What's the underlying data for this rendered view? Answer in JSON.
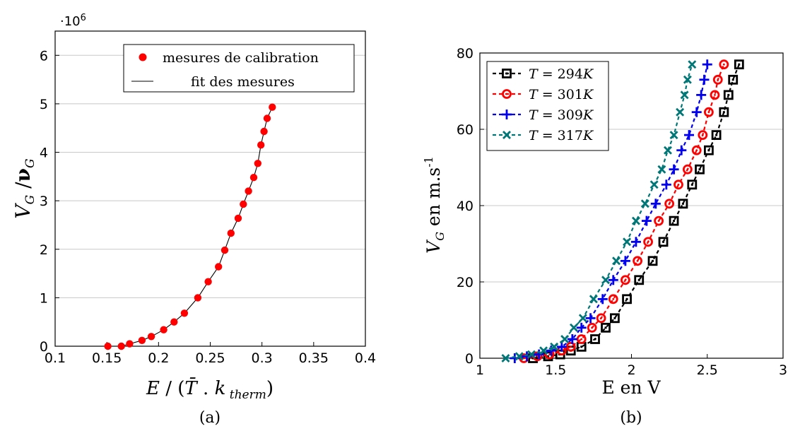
{
  "chart_data": [
    {
      "type": "scatter",
      "caption": "(a)",
      "multiplier": "·10",
      "multiplier_exp": "6",
      "xlim": [
        0.1,
        0.4
      ],
      "ylim": [
        0,
        6.5
      ],
      "x_ticks": [
        "0.1",
        "0.15",
        "0.2",
        "0.25",
        "0.3",
        "0.35",
        "0.4"
      ],
      "y_ticks": [
        "0",
        "1",
        "2",
        "3",
        "4",
        "5",
        "6"
      ],
      "grid": "horizontal",
      "legend_position": "top-right",
      "series": [
        {
          "name": "mesures de calibration",
          "color": "#ff0000",
          "marker": "dot",
          "x": [
            0.151,
            0.164,
            0.172,
            0.184,
            0.193,
            0.205,
            0.215,
            0.225,
            0.238,
            0.248,
            0.258,
            0.264,
            0.27,
            0.277,
            0.282,
            0.287,
            0.292,
            0.296,
            0.299,
            0.302,
            0.305,
            0.31
          ],
          "y": [
            0.0,
            0.0,
            0.05,
            0.12,
            0.2,
            0.34,
            0.5,
            0.68,
            1.0,
            1.33,
            1.64,
            1.98,
            2.33,
            2.64,
            2.93,
            3.2,
            3.48,
            3.77,
            4.15,
            4.43,
            4.7,
            4.93
          ]
        },
        {
          "name": "fit des mesures",
          "color": "#000000",
          "marker": "line",
          "x": [
            0.151,
            0.164,
            0.172,
            0.184,
            0.193,
            0.205,
            0.215,
            0.225,
            0.238,
            0.248,
            0.258,
            0.264,
            0.27,
            0.277,
            0.282,
            0.287,
            0.292,
            0.296,
            0.299,
            0.302,
            0.305,
            0.31
          ],
          "y": [
            0.0,
            0.0,
            0.05,
            0.12,
            0.2,
            0.34,
            0.5,
            0.68,
            1.0,
            1.33,
            1.64,
            1.98,
            2.33,
            2.64,
            2.93,
            3.2,
            3.48,
            3.77,
            4.15,
            4.43,
            4.7,
            4.93
          ]
        }
      ]
    },
    {
      "type": "line",
      "caption": "(b)",
      "xlabel": "E en V",
      "ylabel_main": "en m.s",
      "ylabel_exp": "-1",
      "xlim": [
        1,
        3
      ],
      "ylim": [
        0,
        80
      ],
      "x_ticks": [
        "1",
        "1.5",
        "2",
        "2.5",
        "3"
      ],
      "y_ticks": [
        "0",
        "20",
        "40",
        "60",
        "80"
      ],
      "grid": "horizontal",
      "legend_position": "top-left",
      "y_values": [
        0,
        0.5,
        1,
        2,
        3,
        5,
        8,
        10.5,
        15.5,
        20.5,
        25.5,
        30.5,
        36,
        40.5,
        45.5,
        49.5,
        54.5,
        58.5,
        64.5,
        69,
        73,
        77
      ],
      "series": [
        {
          "name": "T = 294K",
          "value": "294",
          "color": "#000000",
          "marker": "square",
          "x": [
            1.35,
            1.45,
            1.53,
            1.6,
            1.67,
            1.76,
            1.83,
            1.89,
            1.97,
            2.05,
            2.14,
            2.21,
            2.28,
            2.34,
            2.4,
            2.45,
            2.51,
            2.56,
            2.61,
            2.64,
            2.67,
            2.71
          ]
        },
        {
          "name": "T = 301K",
          "value": "301",
          "color": "#ff0000",
          "marker": "circle",
          "x": [
            1.29,
            1.38,
            1.46,
            1.54,
            1.6,
            1.67,
            1.74,
            1.8,
            1.88,
            1.96,
            2.04,
            2.11,
            2.18,
            2.25,
            2.31,
            2.37,
            2.43,
            2.47,
            2.51,
            2.55,
            2.57,
            2.61
          ]
        },
        {
          "name": "T = 309K",
          "value": "309",
          "color": "#0000ee",
          "marker": "plus",
          "x": [
            1.23,
            1.31,
            1.39,
            1.47,
            1.54,
            1.61,
            1.67,
            1.73,
            1.81,
            1.88,
            1.96,
            2.03,
            2.1,
            2.16,
            2.23,
            2.28,
            2.33,
            2.38,
            2.43,
            2.46,
            2.48,
            2.5
          ]
        },
        {
          "name": "T = 317K",
          "value": "317",
          "color": "#007777",
          "marker": "cross",
          "x": [
            1.17,
            1.26,
            1.34,
            1.42,
            1.49,
            1.56,
            1.62,
            1.68,
            1.75,
            1.83,
            1.9,
            1.97,
            2.03,
            2.09,
            2.15,
            2.2,
            2.24,
            2.28,
            2.32,
            2.35,
            2.37,
            2.4
          ]
        }
      ]
    }
  ]
}
